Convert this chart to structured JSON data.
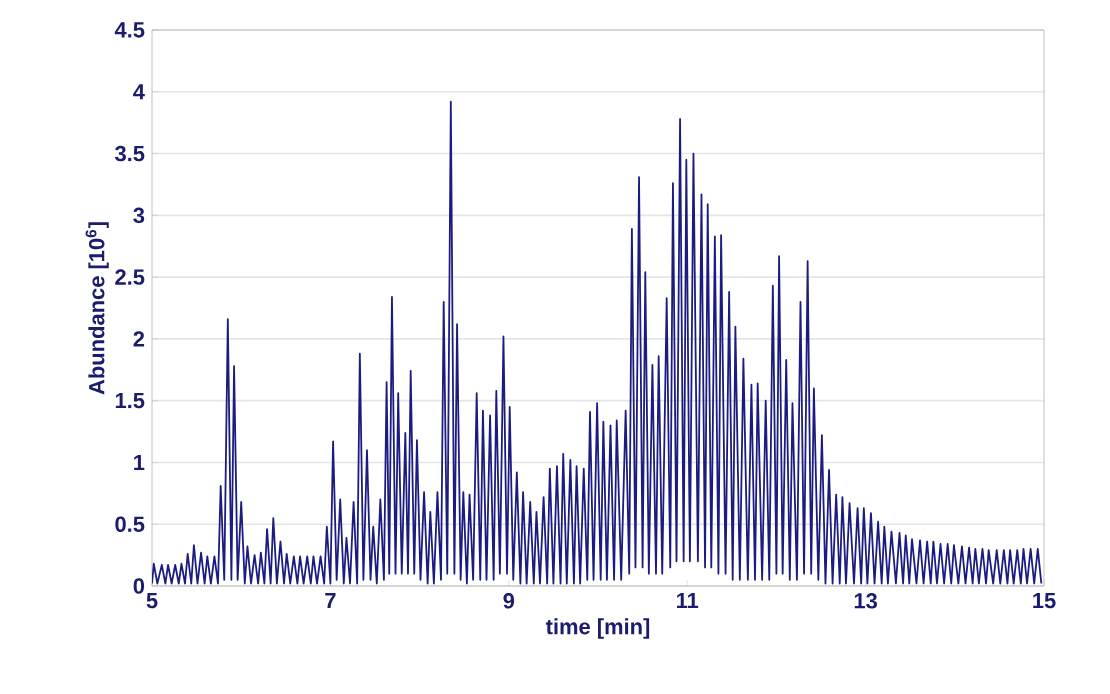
{
  "chart_data": {
    "type": "line",
    "xlabel": "time [min]",
    "ylabel": "Abundance [10$^{6}$]",
    "xlim": [
      5,
      15
    ],
    "xticks": [
      5,
      7,
      9,
      11,
      13,
      15
    ],
    "ylim": [
      0,
      4.5
    ],
    "yticks": [
      0,
      0.5,
      1,
      1.5,
      2,
      2.5,
      3,
      3.5,
      4,
      4.5
    ],
    "grid": "y",
    "marker": "none",
    "line_style": "solid",
    "series": [
      {
        "color": "#1c1c80",
        "x": [
          5.0,
          5.02,
          5.06,
          5.11,
          5.15,
          5.18,
          5.22,
          5.26,
          5.3,
          5.33,
          5.37,
          5.4,
          5.44,
          5.47,
          5.51,
          5.55,
          5.59,
          5.62,
          5.66,
          5.7,
          5.74,
          5.77,
          5.81,
          5.85,
          5.89,
          5.92,
          5.96,
          6.0,
          6.04,
          6.07,
          6.11,
          6.15,
          6.19,
          6.22,
          6.26,
          6.29,
          6.33,
          6.36,
          6.4,
          6.44,
          6.48,
          6.51,
          6.55,
          6.59,
          6.63,
          6.66,
          6.7,
          6.74,
          6.78,
          6.81,
          6.85,
          6.89,
          6.93,
          6.96,
          7.0,
          7.03,
          7.07,
          7.11,
          7.15,
          7.18,
          7.22,
          7.26,
          7.3,
          7.33,
          7.37,
          7.41,
          7.45,
          7.48,
          7.52,
          7.56,
          7.6,
          7.63,
          7.66,
          7.69,
          7.73,
          7.76,
          7.8,
          7.84,
          7.87,
          7.9,
          7.94,
          7.97,
          8.01,
          8.05,
          8.09,
          8.12,
          8.16,
          8.2,
          8.24,
          8.27,
          8.31,
          8.35,
          8.39,
          8.42,
          8.46,
          8.49,
          8.53,
          8.56,
          8.6,
          8.64,
          8.68,
          8.71,
          8.75,
          8.79,
          8.83,
          8.86,
          8.9,
          8.94,
          8.98,
          9.01,
          9.05,
          9.09,
          9.13,
          9.16,
          9.2,
          9.24,
          9.28,
          9.31,
          9.35,
          9.39,
          9.43,
          9.46,
          9.5,
          9.54,
          9.58,
          9.61,
          9.65,
          9.69,
          9.73,
          9.76,
          9.8,
          9.84,
          9.88,
          9.91,
          9.95,
          9.99,
          10.03,
          10.06,
          10.1,
          10.14,
          10.18,
          10.21,
          10.26,
          10.31,
          10.35,
          10.38,
          10.42,
          10.46,
          10.5,
          10.53,
          10.57,
          10.61,
          10.65,
          10.68,
          10.72,
          10.77,
          10.81,
          10.84,
          10.88,
          10.92,
          10.96,
          10.99,
          11.03,
          11.07,
          11.12,
          11.16,
          11.2,
          11.23,
          11.27,
          11.31,
          11.35,
          11.38,
          11.43,
          11.47,
          11.51,
          11.54,
          11.59,
          11.63,
          11.68,
          11.72,
          11.76,
          11.79,
          11.84,
          11.88,
          11.92,
          11.96,
          12.0,
          12.03,
          12.07,
          12.11,
          12.15,
          12.18,
          12.23,
          12.27,
          12.31,
          12.35,
          12.39,
          12.42,
          12.47,
          12.51,
          12.55,
          12.59,
          12.63,
          12.67,
          12.71,
          12.74,
          12.78,
          12.82,
          12.87,
          12.91,
          12.95,
          12.98,
          13.02,
          13.06,
          13.1,
          13.14,
          13.18,
          13.21,
          13.25,
          13.29,
          13.34,
          13.38,
          13.42,
          13.45,
          13.49,
          13.52,
          13.57,
          13.61,
          13.65,
          13.69,
          13.73,
          13.76,
          13.8,
          13.84,
          13.88,
          13.92,
          13.96,
          13.99,
          14.04,
          14.08,
          14.12,
          14.16,
          14.2,
          14.23,
          14.27,
          14.31,
          14.35,
          14.38,
          14.43,
          14.47,
          14.51,
          14.55,
          14.59,
          14.62,
          14.66,
          14.7,
          14.74,
          14.77,
          14.81,
          14.85,
          14.89,
          14.93,
          14.97
        ],
        "values": [
          0.02,
          0.18,
          0.02,
          0.17,
          0.02,
          0.17,
          0.02,
          0.17,
          0.02,
          0.18,
          0.02,
          0.26,
          0.02,
          0.33,
          0.02,
          0.27,
          0.02,
          0.24,
          0.02,
          0.24,
          0.02,
          0.81,
          0.05,
          2.16,
          0.05,
          1.78,
          0.05,
          0.68,
          0.02,
          0.32,
          0.02,
          0.25,
          0.02,
          0.27,
          0.02,
          0.46,
          0.02,
          0.55,
          0.02,
          0.36,
          0.02,
          0.26,
          0.02,
          0.24,
          0.02,
          0.24,
          0.02,
          0.24,
          0.02,
          0.24,
          0.02,
          0.24,
          0.02,
          0.48,
          0.02,
          1.17,
          0.05,
          0.7,
          0.02,
          0.39,
          0.02,
          0.68,
          0.02,
          1.88,
          0.05,
          1.1,
          0.05,
          0.48,
          0.02,
          0.7,
          0.05,
          1.65,
          0.1,
          2.34,
          0.1,
          1.56,
          0.1,
          1.24,
          0.1,
          1.74,
          0.1,
          1.18,
          0.05,
          0.76,
          0.02,
          0.6,
          0.02,
          0.76,
          0.05,
          2.3,
          0.1,
          3.92,
          0.1,
          2.12,
          0.05,
          0.76,
          0.02,
          0.74,
          0.05,
          1.56,
          0.05,
          1.42,
          0.05,
          1.38,
          0.05,
          1.58,
          0.1,
          2.02,
          0.1,
          1.45,
          0.05,
          0.92,
          0.02,
          0.76,
          0.02,
          0.68,
          0.02,
          0.6,
          0.02,
          0.72,
          0.02,
          0.95,
          0.02,
          0.97,
          0.02,
          1.07,
          0.02,
          1.02,
          0.02,
          0.97,
          0.02,
          0.95,
          0.05,
          1.41,
          0.05,
          1.48,
          0.05,
          1.33,
          0.05,
          1.3,
          0.05,
          1.34,
          0.05,
          1.42,
          0.1,
          2.89,
          0.15,
          3.31,
          0.15,
          2.54,
          0.1,
          1.79,
          0.1,
          1.86,
          0.1,
          2.33,
          0.15,
          3.26,
          0.2,
          3.78,
          0.2,
          3.45,
          0.2,
          3.5,
          0.2,
          3.17,
          0.15,
          3.09,
          0.15,
          2.83,
          0.1,
          2.84,
          0.1,
          2.38,
          0.05,
          2.1,
          0.05,
          1.84,
          0.05,
          1.63,
          0.05,
          1.64,
          0.05,
          1.5,
          0.05,
          2.43,
          0.1,
          2.67,
          0.1,
          1.83,
          0.05,
          1.48,
          0.05,
          2.3,
          0.1,
          2.63,
          0.1,
          1.6,
          0.05,
          1.22,
          0.02,
          0.94,
          0.02,
          0.74,
          0.02,
          0.72,
          0.02,
          0.67,
          0.02,
          0.63,
          0.02,
          0.63,
          0.02,
          0.59,
          0.02,
          0.52,
          0.02,
          0.48,
          0.02,
          0.44,
          0.02,
          0.43,
          0.02,
          0.41,
          0.02,
          0.38,
          0.02,
          0.37,
          0.02,
          0.36,
          0.02,
          0.36,
          0.02,
          0.34,
          0.02,
          0.34,
          0.02,
          0.33,
          0.02,
          0.32,
          0.02,
          0.31,
          0.02,
          0.3,
          0.02,
          0.3,
          0.02,
          0.29,
          0.02,
          0.29,
          0.02,
          0.29,
          0.02,
          0.29,
          0.02,
          0.29,
          0.02,
          0.3,
          0.02,
          0.3,
          0.02,
          0.3,
          0.02
        ]
      }
    ]
  }
}
